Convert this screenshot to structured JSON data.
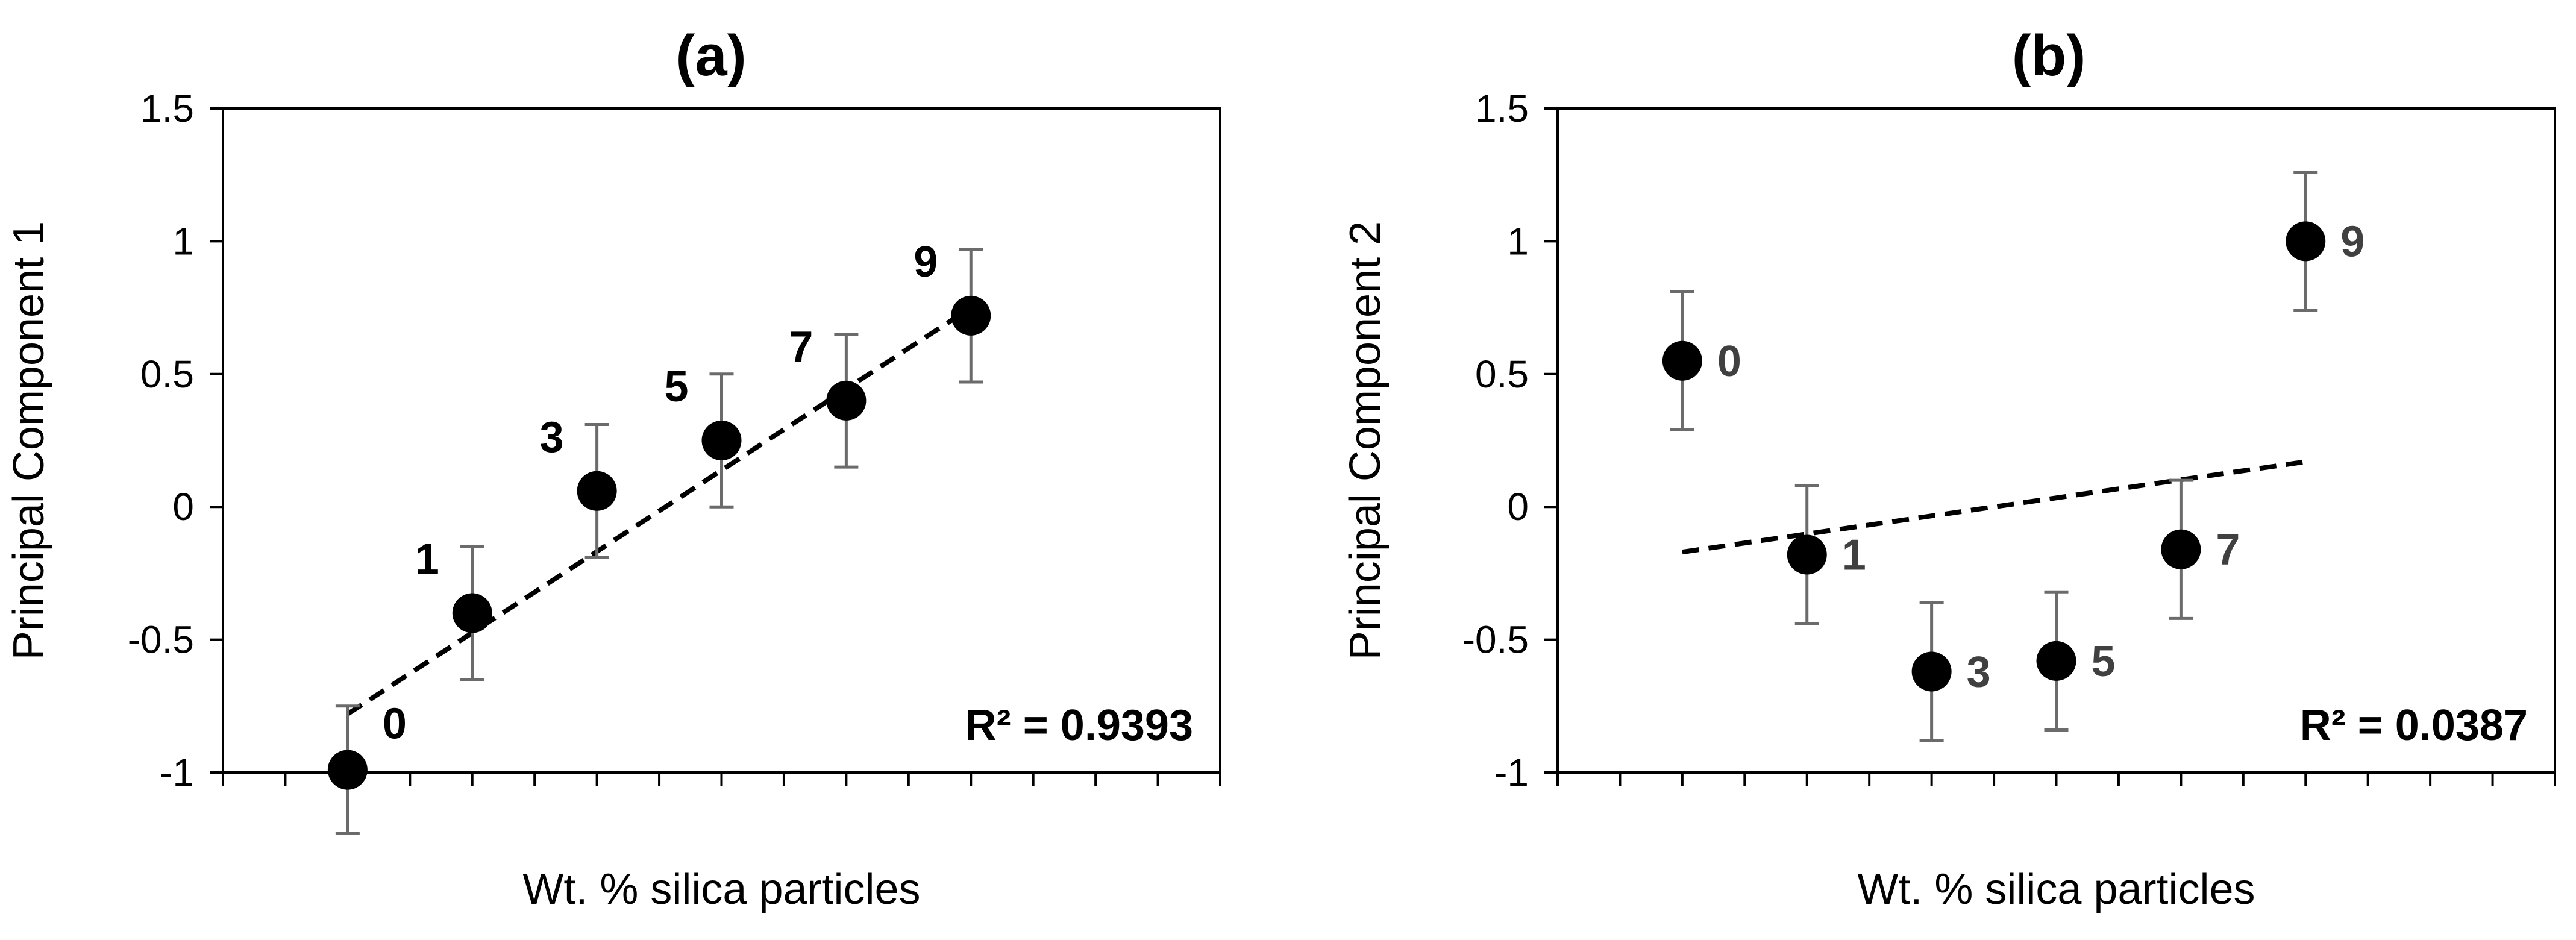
{
  "chart_data": [
    {
      "panel": "(a)",
      "type": "scatter",
      "title": "(a)",
      "xlabel": "Wt. % silica particles",
      "ylabel": "Principal Component 1",
      "ylim": [
        -1,
        1.5
      ],
      "yticks": [
        "-1",
        "-0.5",
        "0",
        "0.5",
        "1",
        "1.5"
      ],
      "xlim": [
        -2,
        14
      ],
      "grid": false,
      "points": [
        {
          "label": "0",
          "x": 0,
          "y": -0.99,
          "err": 0.24
        },
        {
          "label": "1",
          "x": 2,
          "y": -0.4,
          "err": 0.25
        },
        {
          "label": "3",
          "x": 4,
          "y": 0.06,
          "err": 0.25
        },
        {
          "label": "5",
          "x": 6,
          "y": 0.25,
          "err": 0.25
        },
        {
          "label": "7",
          "x": 8,
          "y": 0.4,
          "err": 0.25
        },
        {
          "label": "9",
          "x": 10,
          "y": 0.72,
          "err": 0.25
        }
      ],
      "trendline": {
        "x": [
          0,
          10
        ],
        "y": [
          -0.78,
          0.75
        ]
      },
      "r2_text": "R² = 0.9393",
      "label_color": "#000000"
    },
    {
      "panel": "(b)",
      "type": "scatter",
      "title": "(b)",
      "xlabel": "Wt. % silica particles",
      "ylabel": "Principal Component 2",
      "ylim": [
        -1,
        1.5
      ],
      "yticks": [
        "-1",
        "-0.5",
        "0",
        "0.5",
        "1",
        "1.5"
      ],
      "xlim": [
        -2,
        14
      ],
      "grid": false,
      "points": [
        {
          "label": "0",
          "x": 0,
          "y": 0.55,
          "err": 0.26
        },
        {
          "label": "1",
          "x": 2,
          "y": -0.18,
          "err": 0.26
        },
        {
          "label": "3",
          "x": 4,
          "y": -0.62,
          "err": 0.26
        },
        {
          "label": "5",
          "x": 6,
          "y": -0.58,
          "err": 0.26
        },
        {
          "label": "7",
          "x": 8,
          "y": -0.16,
          "err": 0.26
        },
        {
          "label": "9",
          "x": 10,
          "y": 1.0,
          "err": 0.26
        }
      ],
      "trendline": {
        "x": [
          0,
          10
        ],
        "y": [
          -0.17,
          0.17
        ]
      },
      "r2_text": "R² = 0.0387",
      "label_color": "#404040"
    }
  ]
}
